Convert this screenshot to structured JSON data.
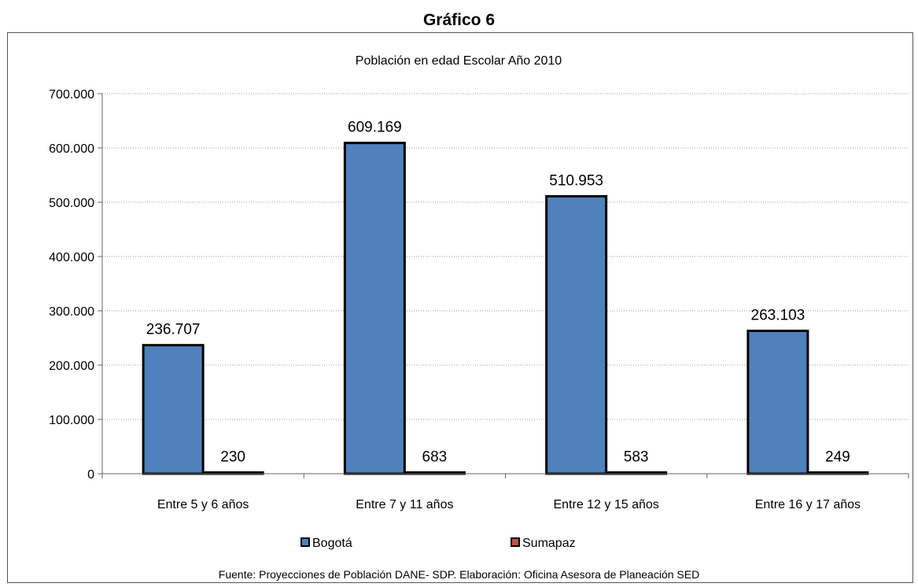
{
  "page": {
    "title": "Gráfico 6",
    "source": "Fuente: Proyecciones de Población DANE- SDP. Elaboración: Oficina Asesora de Planeación SED"
  },
  "chart_data": {
    "type": "bar",
    "title": "Población en edad Escolar Año 2010",
    "xlabel": "",
    "ylabel": "",
    "categories": [
      "Entre 5 y 6 años",
      "Entre 7 y 11 años",
      "Entre 12 y 15 años",
      "Entre 16 y 17 años"
    ],
    "series": [
      {
        "name": "Bogotá",
        "color": "#4f81bd",
        "values": [
          236707,
          609169,
          510953,
          263103
        ],
        "labels": [
          "236.707",
          "609.169",
          "510.953",
          "263.103"
        ]
      },
      {
        "name": "Sumapaz",
        "color": "#c0504d",
        "values": [
          230,
          683,
          583,
          249
        ],
        "labels": [
          "230",
          "683",
          "583",
          "249"
        ]
      }
    ],
    "ylim": [
      0,
      700000
    ],
    "yticks": [
      0,
      100000,
      200000,
      300000,
      400000,
      500000,
      600000,
      700000
    ],
    "ytick_labels": [
      "0",
      "100.000",
      "200.000",
      "300.000",
      "400.000",
      "500.000",
      "600.000",
      "700.000"
    ],
    "grid": true,
    "legend_position": "bottom"
  }
}
